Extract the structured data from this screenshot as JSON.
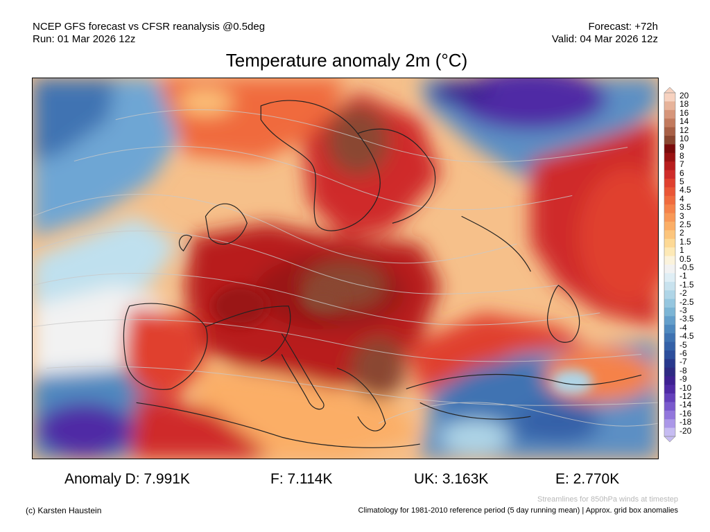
{
  "header": {
    "line1_left": "NCEP GFS forecast vs CFSR reanalysis @0.5deg",
    "line2_left": "Run: 01 Mar 2026 12z",
    "line1_right": "Forecast: +72h",
    "line2_right": "Valid: 04 Mar 2026 12z"
  },
  "title": "Temperature anomaly 2m (°C)",
  "colorbar": {
    "labels": [
      "20",
      "18",
      "16",
      "14",
      "12",
      "10",
      "9",
      "8",
      "7",
      "6",
      "5",
      "4.5",
      "4",
      "3.5",
      "3",
      "2.5",
      "2",
      "1.5",
      "1",
      "0.5",
      "-0.5",
      "-1",
      "-1.5",
      "-2",
      "-2.5",
      "-3",
      "-3.5",
      "-4",
      "-4.5",
      "-5",
      "-6",
      "-7",
      "-8",
      "-9",
      "-10",
      "-12",
      "-14",
      "-16",
      "-18",
      "-20"
    ],
    "colors": [
      "#f7d2c0",
      "#e7b39a",
      "#d6957a",
      "#c27a5e",
      "#a86046",
      "#8a4630",
      "#7a0b0b",
      "#9a1212",
      "#b81d1d",
      "#cf2c2a",
      "#e0402f",
      "#ea5636",
      "#f06b3e",
      "#f5824a",
      "#f89857",
      "#fbae66",
      "#fcc57c",
      "#fdd995",
      "#fde9b6",
      "#fbf3dc",
      "#f2f2f2",
      "#dfeef5",
      "#c8e2ee",
      "#afd5e7",
      "#95c6df",
      "#7cb5d5",
      "#649fcb",
      "#4f89bf",
      "#3f73b2",
      "#3461a8",
      "#2c4e9c",
      "#28388d",
      "#2e2a83",
      "#3e2192",
      "#4f2aa5",
      "#6440bb",
      "#7a5acd",
      "#9276dc",
      "#ab97e8",
      "#c6bcf2"
    ]
  },
  "anomalies": {
    "d": "Anomaly D: 7.991K",
    "f": "F: 7.114K",
    "uk": "UK: 3.163K",
    "e": "E: 2.770K"
  },
  "notes": {
    "streamlines": "Streamlines for 850hPa winds at timestep",
    "credit": "(c) Karsten Haustein",
    "climatology": "Climatology for 1981-2010 reference period (5 day running mean) | Approx. grid box anomalies"
  }
}
